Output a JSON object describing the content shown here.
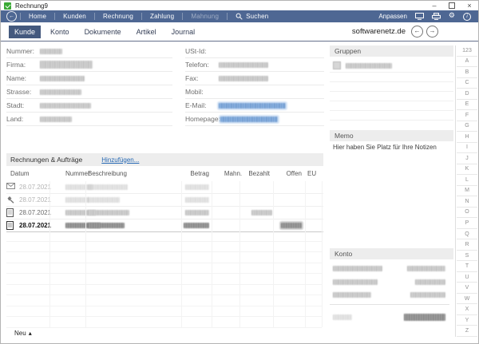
{
  "titlebar": {
    "app_name": "Rechnung9",
    "minimize_glyph": "–",
    "close_glyph": "×"
  },
  "menubar": {
    "items": [
      {
        "label": "Home",
        "enabled": true
      },
      {
        "label": "Kunden",
        "enabled": true
      },
      {
        "label": "Rechnung",
        "enabled": true
      },
      {
        "label": "Zahlung",
        "enabled": true
      },
      {
        "label": "Mahnung",
        "enabled": false
      },
      {
        "label": "Suchen",
        "enabled": true
      }
    ],
    "anpassen_label": "Anpassen"
  },
  "icons": {
    "back_arrow": "←",
    "nav_back": "←",
    "nav_forward": "→",
    "gear": "⚙",
    "info": "i",
    "caret_up": "▴"
  },
  "tabs": {
    "items": [
      {
        "label": "Kunde",
        "selected": true
      },
      {
        "label": "Konto",
        "selected": false
      },
      {
        "label": "Dokumente",
        "selected": false
      },
      {
        "label": "Artikel",
        "selected": false
      },
      {
        "label": "Journal",
        "selected": false
      }
    ]
  },
  "header": {
    "account_name": "softwarenetz.de"
  },
  "form": {
    "left_fields": [
      {
        "label": "Nummer:",
        "redacted": true
      },
      {
        "label": "Firma:",
        "redacted": true
      },
      {
        "label": "Name:",
        "redacted": true
      },
      {
        "label": "Strasse:",
        "redacted": true
      },
      {
        "label": "Stadt:",
        "redacted": true
      },
      {
        "label": "Land:",
        "redacted": true
      }
    ],
    "right_fields": [
      {
        "label": "USt-Id:",
        "redacted": false
      },
      {
        "label": "Telefon:",
        "redacted": true
      },
      {
        "label": "Fax:",
        "redacted": true
      },
      {
        "label": "Mobil:",
        "redacted": false
      },
      {
        "label": "E-Mail:",
        "redacted": true,
        "style": "link"
      },
      {
        "label": "Homepage:",
        "redacted": true,
        "style": "link"
      }
    ]
  },
  "invoices": {
    "section_title": "Rechnungen & Aufträge",
    "add_link": "Hinzufügen...",
    "columns": [
      "Datum",
      "Nummer",
      "Beschreibung",
      "Betrag",
      "Mahn.",
      "Bezahlt",
      "Offen",
      "EU"
    ],
    "rows": [
      {
        "icon": "envelope",
        "date": "28.07.2021",
        "emphasis": "muted",
        "betrag_redacted": true,
        "bezahlt_redacted": false,
        "offen_redacted": false
      },
      {
        "icon": "hammer",
        "date": "28.07.2021",
        "emphasis": "muted",
        "betrag_redacted": true,
        "bezahlt_redacted": false,
        "offen_redacted": false
      },
      {
        "icon": "document",
        "date": "28.07.2021",
        "emphasis": "normal",
        "betrag_redacted": true,
        "bezahlt_redacted": true,
        "offen_redacted": false
      },
      {
        "icon": "document",
        "date": "28.07.2021",
        "emphasis": "bold",
        "betrag_redacted": true,
        "bezahlt_redacted": false,
        "offen_redacted": true
      }
    ]
  },
  "footer": {
    "new_label": "Neu"
  },
  "panels": {
    "gruppen": {
      "title": "Gruppen",
      "items": [
        {
          "redacted": true
        }
      ]
    },
    "memo": {
      "title": "Memo",
      "text": "Hier haben Sie Platz für Ihre Notizen"
    },
    "konto": {
      "title": "Konto",
      "rows_redacted": 4
    }
  },
  "alphabet": [
    "123",
    "A",
    "B",
    "C",
    "D",
    "E",
    "F",
    "G",
    "H",
    "I",
    "J",
    "K",
    "L",
    "M",
    "N",
    "O",
    "P",
    "Q",
    "R",
    "S",
    "T",
    "U",
    "V",
    "W",
    "X",
    "Y",
    "Z"
  ],
  "colors": {
    "menubar": "#4e6793",
    "tab_selected": "#44597e",
    "link": "#2467b3",
    "header_band": "#ededed",
    "app_icon": "#3aa935"
  }
}
